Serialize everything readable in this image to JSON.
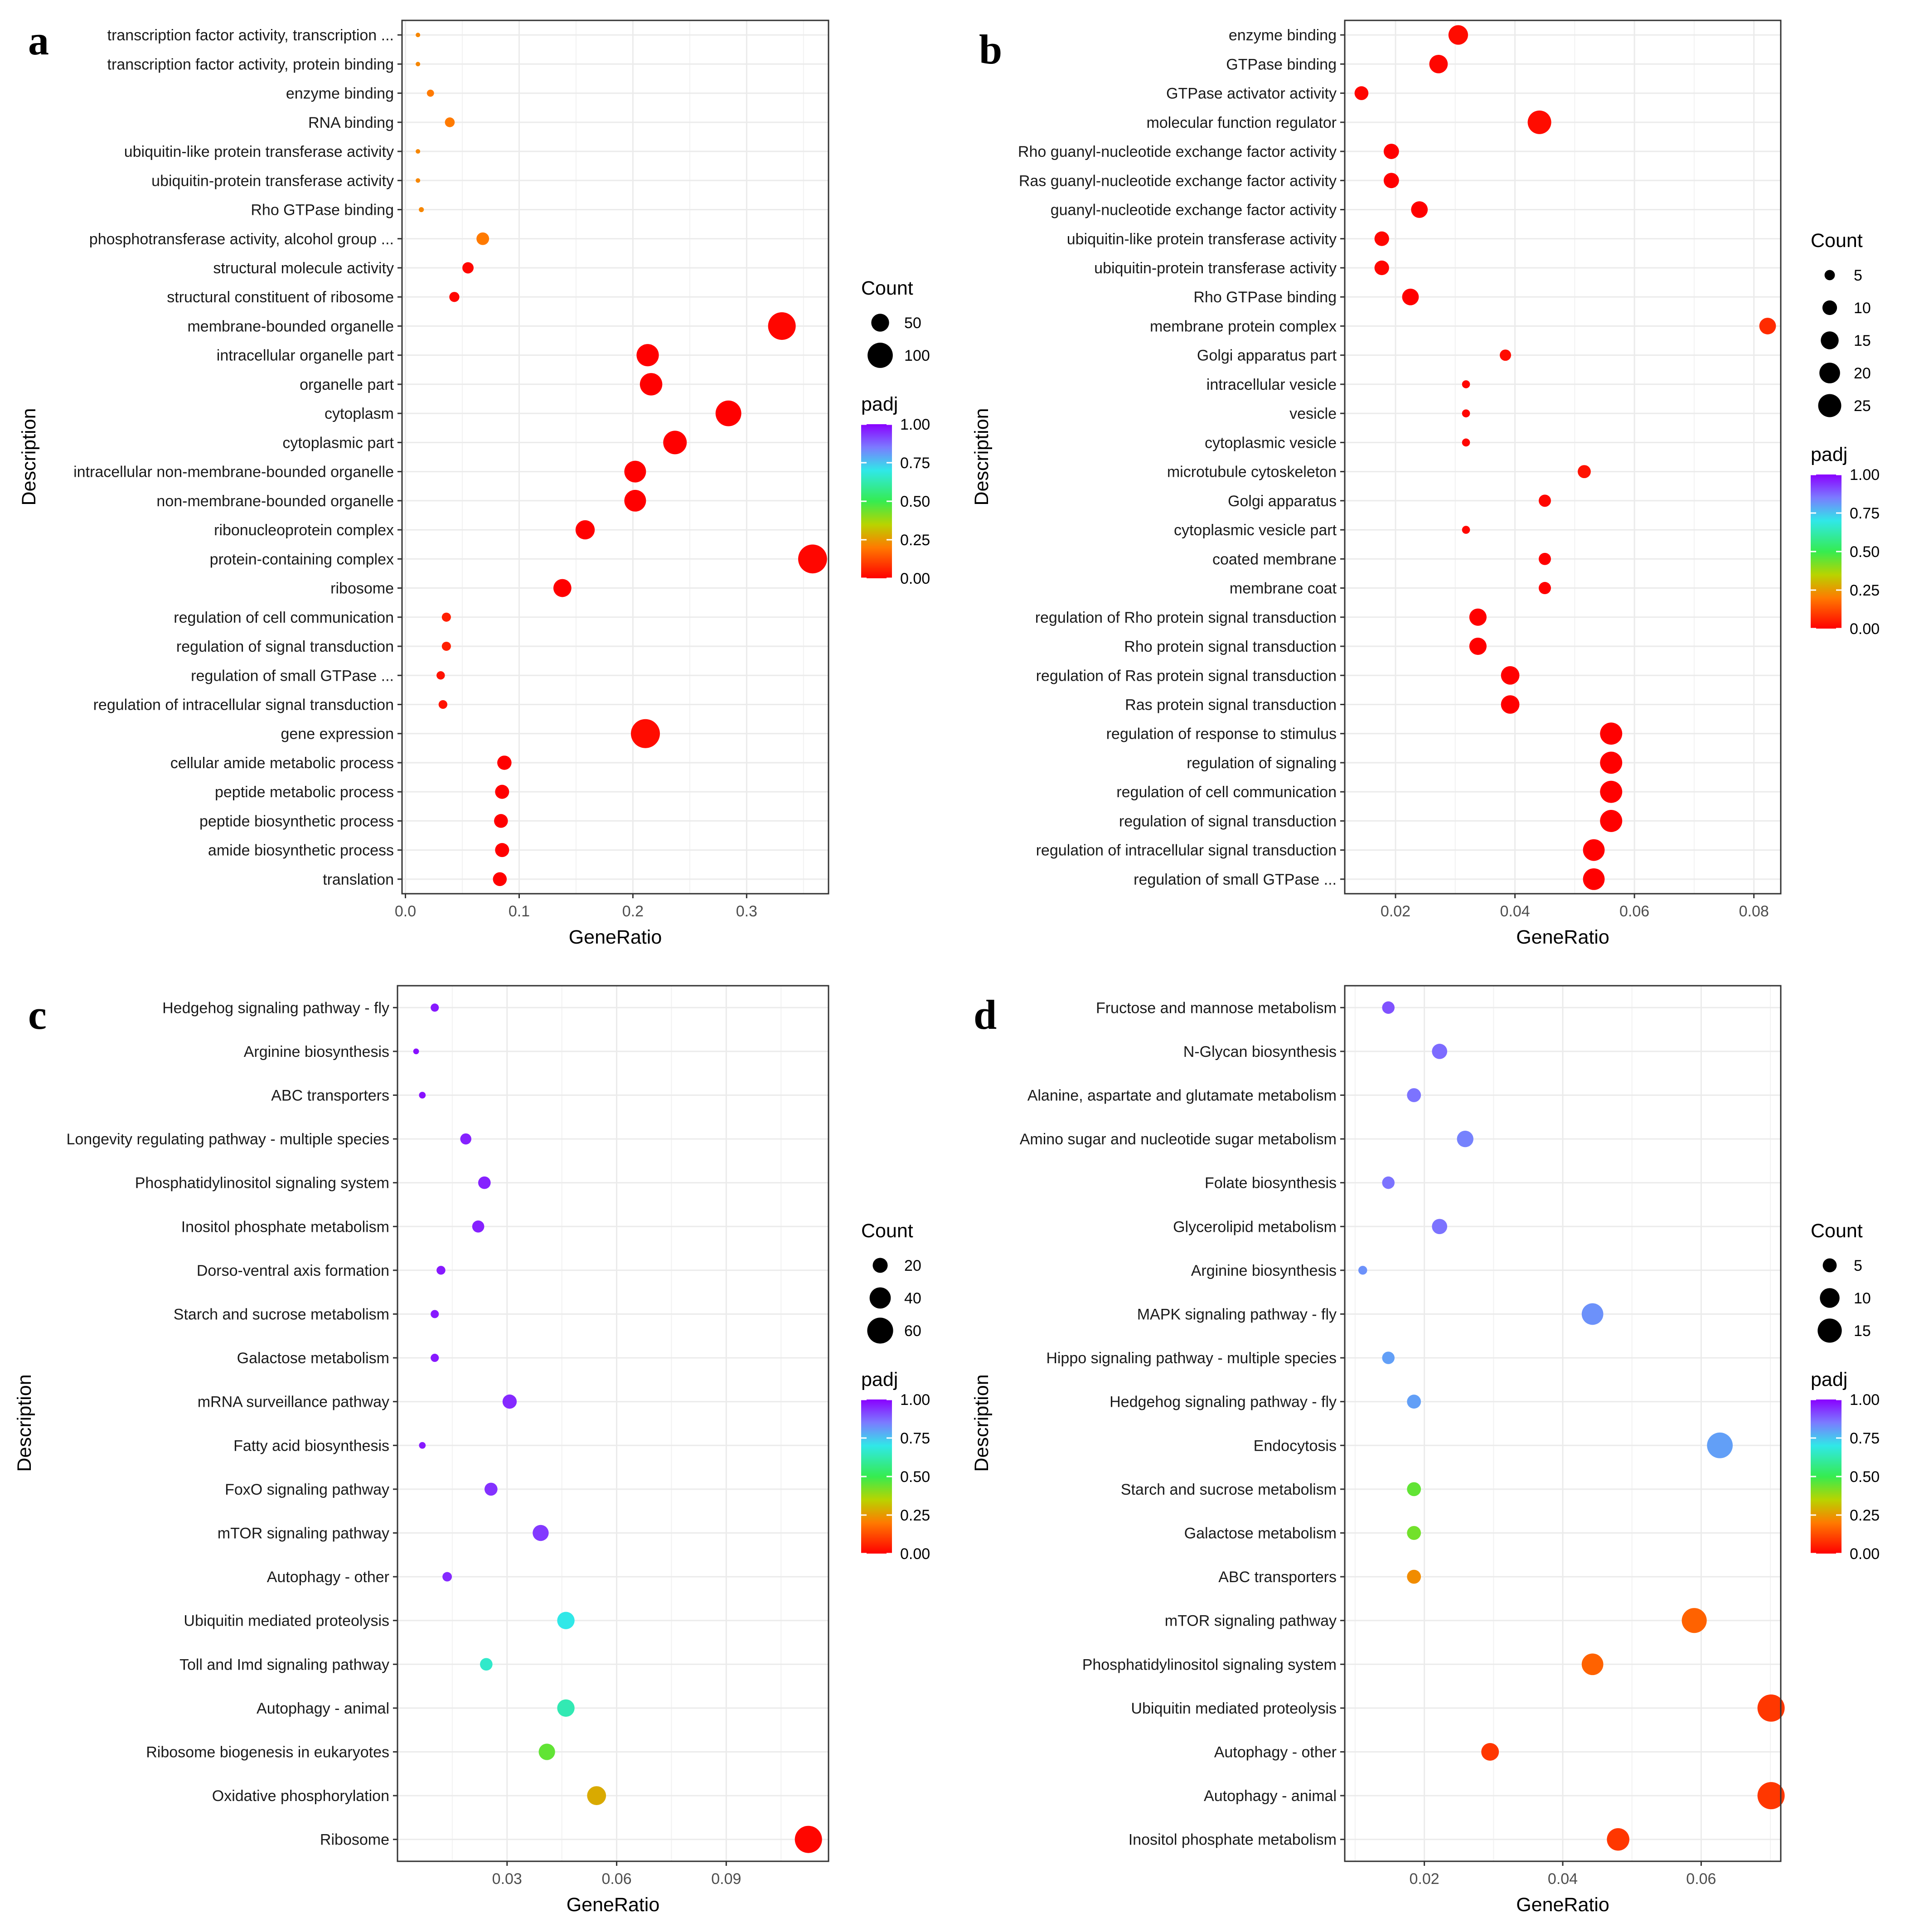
{
  "figure": {
    "panels": [
      "a",
      "b",
      "c",
      "d"
    ]
  },
  "legend_titles": {
    "count": "Count",
    "padj": "padj"
  },
  "chart_data": [
    {
      "panel_label": "a",
      "type": "scatter",
      "xlabel": "GeneRatio",
      "ylabel": "Description",
      "xlim": [
        -0.003,
        0.372
      ],
      "xticks": [
        0,
        0.1,
        0.2,
        0.3
      ],
      "xtick_labels": [
        "0.0",
        "0.1",
        "0.2",
        "0.3"
      ],
      "size_legend": {
        "title": "Count",
        "values": [
          50,
          100
        ],
        "labels": [
          "50",
          "100"
        ]
      },
      "color_legend": {
        "title": "padj",
        "ticks": [
          1.0,
          0.75,
          0.5,
          0.25,
          0.0
        ],
        "labels": [
          "1.00",
          "0.75",
          "0.50",
          "0.25",
          "0.00"
        ]
      },
      "points": [
        {
          "term": "transcription factor activity, transcription ...",
          "x": 0.011,
          "count": 2,
          "padj": 0.22
        },
        {
          "term": "transcription factor activity, protein binding",
          "x": 0.011,
          "count": 2,
          "padj": 0.22
        },
        {
          "term": "enzyme binding",
          "x": 0.022,
          "count": 8,
          "padj": 0.2
        },
        {
          "term": "RNA binding",
          "x": 0.039,
          "count": 15,
          "padj": 0.2
        },
        {
          "term": "ubiquitin-like protein transferase activity",
          "x": 0.011,
          "count": 2,
          "padj": 0.22
        },
        {
          "term": "ubiquitin-protein transferase activity",
          "x": 0.011,
          "count": 2,
          "padj": 0.22
        },
        {
          "term": "Rho GTPase binding",
          "x": 0.014,
          "count": 4,
          "padj": 0.22
        },
        {
          "term": "phosphotransferase activity, alcohol group ...",
          "x": 0.068,
          "count": 25,
          "padj": 0.2
        },
        {
          "term": "structural molecule activity",
          "x": 0.055,
          "count": 20,
          "padj": 0.01
        },
        {
          "term": "structural constituent of ribosome",
          "x": 0.043,
          "count": 16,
          "padj": 0.01
        },
        {
          "term": "membrane-bounded organelle",
          "x": 0.331,
          "count": 120,
          "padj": 0.01
        },
        {
          "term": "intracellular organelle part",
          "x": 0.213,
          "count": 78,
          "padj": 0.0
        },
        {
          "term": "organelle part",
          "x": 0.216,
          "count": 79,
          "padj": 0.0
        },
        {
          "term": "cytoplasm",
          "x": 0.284,
          "count": 104,
          "padj": 0.0
        },
        {
          "term": "cytoplasmic part",
          "x": 0.237,
          "count": 87,
          "padj": 0.0
        },
        {
          "term": "intracellular non-membrane-bounded organelle",
          "x": 0.202,
          "count": 74,
          "padj": 0.0
        },
        {
          "term": "non-membrane-bounded organelle",
          "x": 0.202,
          "count": 74,
          "padj": 0.0
        },
        {
          "term": "ribonucleoprotein complex",
          "x": 0.158,
          "count": 58,
          "padj": 0.0
        },
        {
          "term": "protein-containing complex",
          "x": 0.358,
          "count": 131,
          "padj": 0.01
        },
        {
          "term": "ribosome",
          "x": 0.138,
          "count": 51,
          "padj": 0.0
        },
        {
          "term": "regulation of cell communication",
          "x": 0.036,
          "count": 13,
          "padj": 0.05
        },
        {
          "term": "regulation of signal transduction",
          "x": 0.036,
          "count": 13,
          "padj": 0.05
        },
        {
          "term": "regulation of small GTPase ...",
          "x": 0.031,
          "count": 11,
          "padj": 0.03
        },
        {
          "term": "regulation of intracellular signal transduction",
          "x": 0.033,
          "count": 12,
          "padj": 0.03
        },
        {
          "term": "gene expression",
          "x": 0.211,
          "count": 132,
          "padj": 0.02
        },
        {
          "term": "cellular amide metabolic process",
          "x": 0.087,
          "count": 32,
          "padj": 0.0
        },
        {
          "term": "peptide metabolic process",
          "x": 0.085,
          "count": 31,
          "padj": 0.0
        },
        {
          "term": "peptide biosynthetic process",
          "x": 0.084,
          "count": 30,
          "padj": 0.0
        },
        {
          "term": "amide biosynthetic process",
          "x": 0.085,
          "count": 31,
          "padj": 0.0
        },
        {
          "term": "translation",
          "x": 0.083,
          "count": 30,
          "padj": 0.0
        }
      ]
    },
    {
      "panel_label": "b",
      "type": "scatter",
      "xlabel": "GeneRatio",
      "ylabel": "Description",
      "xlim": [
        0.0115,
        0.0845
      ],
      "xticks": [
        0.02,
        0.04,
        0.06,
        0.08
      ],
      "xtick_labels": [
        "0.02",
        "0.04",
        "0.06",
        "0.08"
      ],
      "size_legend": {
        "title": "Count",
        "values": [
          5,
          10,
          15,
          20,
          25
        ],
        "labels": [
          "5",
          "10",
          "15",
          "20",
          "25"
        ]
      },
      "color_legend": {
        "title": "padj",
        "ticks": [
          1.0,
          0.75,
          0.5,
          0.25,
          0.0
        ],
        "labels": [
          "1.00",
          "0.75",
          "0.50",
          "0.25",
          "0.00"
        ]
      },
      "points": [
        {
          "term": "enzyme binding",
          "x": 0.0305,
          "count": 18,
          "padj": 0.02
        },
        {
          "term": "GTPase binding",
          "x": 0.0272,
          "count": 16,
          "padj": 0.01
        },
        {
          "term": "GTPase activator activity",
          "x": 0.0143,
          "count": 9,
          "padj": 0.01
        },
        {
          "term": "molecular function regulator",
          "x": 0.0441,
          "count": 26,
          "padj": 0.02
        },
        {
          "term": "Rho guanyl-nucleotide exchange factor activity",
          "x": 0.0193,
          "count": 11,
          "padj": 0.0
        },
        {
          "term": "Ras guanyl-nucleotide exchange factor activity",
          "x": 0.0193,
          "count": 11,
          "padj": 0.0
        },
        {
          "term": "guanyl-nucleotide exchange factor activity",
          "x": 0.024,
          "count": 13,
          "padj": 0.0
        },
        {
          "term": "ubiquitin-like protein transferase activity",
          "x": 0.0177,
          "count": 10,
          "padj": 0.01
        },
        {
          "term": "ubiquitin-protein transferase activity",
          "x": 0.0177,
          "count": 10,
          "padj": 0.01
        },
        {
          "term": "Rho GTPase binding",
          "x": 0.0225,
          "count": 13,
          "padj": 0.0
        },
        {
          "term": "membrane protein complex",
          "x": 0.0823,
          "count": 13,
          "padj": 0.07
        },
        {
          "term": "Golgi apparatus part",
          "x": 0.0384,
          "count": 6,
          "padj": 0.02
        },
        {
          "term": "intracellular vesicle",
          "x": 0.0318,
          "count": 3,
          "padj": 0.01
        },
        {
          "term": "vesicle",
          "x": 0.0318,
          "count": 3,
          "padj": 0.01
        },
        {
          "term": "cytoplasmic vesicle",
          "x": 0.0318,
          "count": 3,
          "padj": 0.01
        },
        {
          "term": "microtubule cytoskeleton",
          "x": 0.0516,
          "count": 8,
          "padj": 0.03
        },
        {
          "term": "Golgi apparatus",
          "x": 0.045,
          "count": 7,
          "padj": 0.01
        },
        {
          "term": "cytoplasmic vesicle part",
          "x": 0.0318,
          "count": 3,
          "padj": 0.01
        },
        {
          "term": "coated membrane",
          "x": 0.045,
          "count": 7,
          "padj": 0.0
        },
        {
          "term": "membrane coat",
          "x": 0.045,
          "count": 7,
          "padj": 0.0
        },
        {
          "term": "regulation of Rho protein signal transduction",
          "x": 0.0338,
          "count": 14,
          "padj": 0.0
        },
        {
          "term": "Rho protein signal transduction",
          "x": 0.0338,
          "count": 14,
          "padj": 0.0
        },
        {
          "term": "regulation of Ras protein signal transduction",
          "x": 0.0392,
          "count": 16,
          "padj": 0.0
        },
        {
          "term": "Ras protein signal transduction",
          "x": 0.0392,
          "count": 16,
          "padj": 0.0
        },
        {
          "term": "regulation of response to stimulus",
          "x": 0.0561,
          "count": 23,
          "padj": 0.0
        },
        {
          "term": "regulation of signaling",
          "x": 0.0561,
          "count": 23,
          "padj": 0.0
        },
        {
          "term": "regulation of cell communication",
          "x": 0.0561,
          "count": 23,
          "padj": 0.0
        },
        {
          "term": "regulation of signal transduction",
          "x": 0.0561,
          "count": 23,
          "padj": 0.0
        },
        {
          "term": "regulation of intracellular signal transduction",
          "x": 0.0532,
          "count": 22,
          "padj": 0.0
        },
        {
          "term": "regulation of small GTPase ...",
          "x": 0.0532,
          "count": 22,
          "padj": 0.0
        }
      ]
    },
    {
      "panel_label": "c",
      "type": "scatter",
      "xlabel": "GeneRatio",
      "ylabel": "Description",
      "xlim": [
        0.0,
        0.118
      ],
      "xticks": [
        0.03,
        0.06,
        0.09
      ],
      "xtick_labels": [
        "0.03",
        "0.06",
        "0.09"
      ],
      "size_legend": {
        "title": "Count",
        "values": [
          20,
          40,
          60
        ],
        "labels": [
          "20",
          "40",
          "60"
        ]
      },
      "color_legend": {
        "title": "padj",
        "ticks": [
          1.0,
          0.75,
          0.5,
          0.25,
          0.0
        ],
        "labels": [
          "1.00",
          "0.75",
          "0.50",
          "0.25",
          "0.00"
        ]
      },
      "points": [
        {
          "term": "Hedgehog signaling pathway - fly",
          "x": 0.0102,
          "count": 6,
          "padj": 0.97
        },
        {
          "term": "Arginine biosynthesis",
          "x": 0.0051,
          "count": 3,
          "padj": 0.98
        },
        {
          "term": "ABC transporters",
          "x": 0.0068,
          "count": 4,
          "padj": 0.98
        },
        {
          "term": "Longevity regulating pathway - multiple species",
          "x": 0.0187,
          "count": 11,
          "padj": 0.96
        },
        {
          "term": "Phosphatidylinositol signaling system",
          "x": 0.0238,
          "count": 14,
          "padj": 0.96
        },
        {
          "term": "Inositol phosphate metabolism",
          "x": 0.0221,
          "count": 13,
          "padj": 0.96
        },
        {
          "term": "Dorso-ventral axis formation",
          "x": 0.0119,
          "count": 7,
          "padj": 0.97
        },
        {
          "term": "Starch and sucrose metabolism",
          "x": 0.0102,
          "count": 6,
          "padj": 0.97
        },
        {
          "term": "Galactose metabolism",
          "x": 0.0102,
          "count": 6,
          "padj": 0.97
        },
        {
          "term": "mRNA surveillance pathway",
          "x": 0.0307,
          "count": 18,
          "padj": 0.95
        },
        {
          "term": "Fatty acid biosynthesis",
          "x": 0.0068,
          "count": 4,
          "padj": 0.97
        },
        {
          "term": "FoxO signaling pathway",
          "x": 0.0256,
          "count": 15,
          "padj": 0.94
        },
        {
          "term": "mTOR signaling pathway",
          "x": 0.0392,
          "count": 23,
          "padj": 0.93
        },
        {
          "term": "Autophagy - other",
          "x": 0.0136,
          "count": 8,
          "padj": 0.95
        },
        {
          "term": "Ubiquitin mediated proteolysis",
          "x": 0.0461,
          "count": 27,
          "padj": 0.7
        },
        {
          "term": "Toll and Imd signaling pathway",
          "x": 0.0243,
          "count": 14,
          "padj": 0.66
        },
        {
          "term": "Autophagy - animal",
          "x": 0.0461,
          "count": 27,
          "padj": 0.63
        },
        {
          "term": "Ribosome biogenesis in eukaryotes",
          "x": 0.0409,
          "count": 24,
          "padj": 0.45
        },
        {
          "term": "Oxidative phosphorylation",
          "x": 0.0545,
          "count": 32,
          "padj": 0.28
        },
        {
          "term": "Ribosome",
          "x": 0.1125,
          "count": 66,
          "padj": 0.01
        }
      ]
    },
    {
      "panel_label": "d",
      "type": "scatter",
      "xlabel": "GeneRatio",
      "ylabel": "Description",
      "xlim": [
        0.0085,
        0.0715
      ],
      "xticks": [
        0.02,
        0.04,
        0.06
      ],
      "xtick_labels": [
        "0.02",
        "0.04",
        "0.06"
      ],
      "size_legend": {
        "title": "Count",
        "values": [
          5,
          10,
          15
        ],
        "labels": [
          "5",
          "10",
          "15"
        ]
      },
      "color_legend": {
        "title": "padj",
        "ticks": [
          1.0,
          0.75,
          0.5,
          0.25,
          0.0
        ],
        "labels": [
          "1.00",
          "0.75",
          "0.50",
          "0.25",
          "0.00"
        ]
      },
      "points": [
        {
          "term": "Fructose and mannose metabolism",
          "x": 0.0148,
          "count": 4,
          "padj": 0.9
        },
        {
          "term": "N-Glycan biosynthesis",
          "x": 0.0222,
          "count": 6,
          "padj": 0.87
        },
        {
          "term": "Alanine, aspartate and glutamate metabolism",
          "x": 0.0185,
          "count": 5,
          "padj": 0.86
        },
        {
          "term": "Amino sugar and nucleotide sugar metabolism",
          "x": 0.0259,
          "count": 7,
          "padj": 0.84
        },
        {
          "term": "Folate biosynthesis",
          "x": 0.0148,
          "count": 4,
          "padj": 0.86
        },
        {
          "term": "Glycerolipid metabolism",
          "x": 0.0222,
          "count": 6,
          "padj": 0.86
        },
        {
          "term": "Arginine biosynthesis",
          "x": 0.0111,
          "count": 2,
          "padj": 0.82
        },
        {
          "term": "MAPK signaling pathway - fly",
          "x": 0.0443,
          "count": 12,
          "padj": 0.82
        },
        {
          "term": "Hippo signaling pathway - multiple species",
          "x": 0.0148,
          "count": 4,
          "padj": 0.8
        },
        {
          "term": "Hedgehog signaling pathway - fly",
          "x": 0.0185,
          "count": 5,
          "padj": 0.8
        },
        {
          "term": "Endocytosis",
          "x": 0.0627,
          "count": 17,
          "padj": 0.8
        },
        {
          "term": "Starch and sucrose metabolism",
          "x": 0.0185,
          "count": 5,
          "padj": 0.45
        },
        {
          "term": "Galactose metabolism",
          "x": 0.0185,
          "count": 5,
          "padj": 0.43
        },
        {
          "term": "ABC transporters",
          "x": 0.0185,
          "count": 5,
          "padj": 0.23
        },
        {
          "term": "mTOR signaling pathway",
          "x": 0.059,
          "count": 16,
          "padj": 0.16
        },
        {
          "term": "Phosphatidylinositol signaling system",
          "x": 0.0443,
          "count": 12,
          "padj": 0.16
        },
        {
          "term": "Ubiquitin mediated proteolysis",
          "x": 0.0701,
          "count": 19,
          "padj": 0.09
        },
        {
          "term": "Autophagy - other",
          "x": 0.0295,
          "count": 8,
          "padj": 0.09
        },
        {
          "term": "Autophagy - animal",
          "x": 0.0701,
          "count": 19,
          "padj": 0.09
        },
        {
          "term": "Inositol phosphate metabolism",
          "x": 0.048,
          "count": 13,
          "padj": 0.09
        }
      ]
    }
  ]
}
